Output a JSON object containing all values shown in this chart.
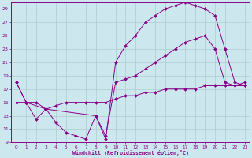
{
  "xlabel": "Windchill (Refroidissement éolien,°C)",
  "bg_color": "#cce8ee",
  "line_color": "#880088",
  "grid_color": "#aacccc",
  "xlim": [
    -0.5,
    23.5
  ],
  "ylim": [
    9,
    30
  ],
  "yticks": [
    9,
    11,
    13,
    15,
    17,
    19,
    21,
    23,
    25,
    27,
    29
  ],
  "xticks": [
    0,
    1,
    2,
    3,
    4,
    5,
    6,
    7,
    8,
    9,
    10,
    11,
    12,
    13,
    14,
    15,
    16,
    17,
    18,
    19,
    20,
    21,
    22,
    23
  ],
  "s1_x": [
    0,
    1,
    2,
    3,
    4,
    5,
    6,
    7,
    8,
    9,
    10,
    11,
    12,
    13,
    14,
    15,
    16,
    17,
    18,
    19,
    20,
    21,
    22,
    23
  ],
  "s1_y": [
    18,
    15,
    12.5,
    14,
    12,
    10.5,
    10,
    9.5,
    13,
    10,
    18,
    18.5,
    19,
    20,
    21,
    22,
    23,
    24,
    24.5,
    25,
    23,
    18,
    17.5,
    17.5
  ],
  "s2_x": [
    0,
    1,
    2,
    3,
    4,
    5,
    6,
    7,
    8,
    9,
    10,
    11,
    12,
    13,
    14,
    15,
    16,
    17,
    18,
    19,
    20,
    21,
    22,
    23
  ],
  "s2_y": [
    15,
    15,
    15,
    14,
    14.5,
    15,
    15,
    15,
    15,
    15,
    15.5,
    16,
    16,
    16.5,
    16.5,
    17,
    17,
    17,
    17,
    17.5,
    17.5,
    17.5,
    17.5,
    18
  ],
  "s3_x": [
    0,
    1,
    3,
    8,
    9,
    10,
    11,
    12,
    13,
    14,
    15,
    16,
    17,
    18,
    19,
    20,
    21,
    22,
    23
  ],
  "s3_y": [
    18,
    15,
    14,
    13,
    9.5,
    21,
    23.5,
    25,
    27,
    28,
    29,
    29.5,
    30,
    29.5,
    29,
    28,
    23,
    18,
    17.5
  ]
}
